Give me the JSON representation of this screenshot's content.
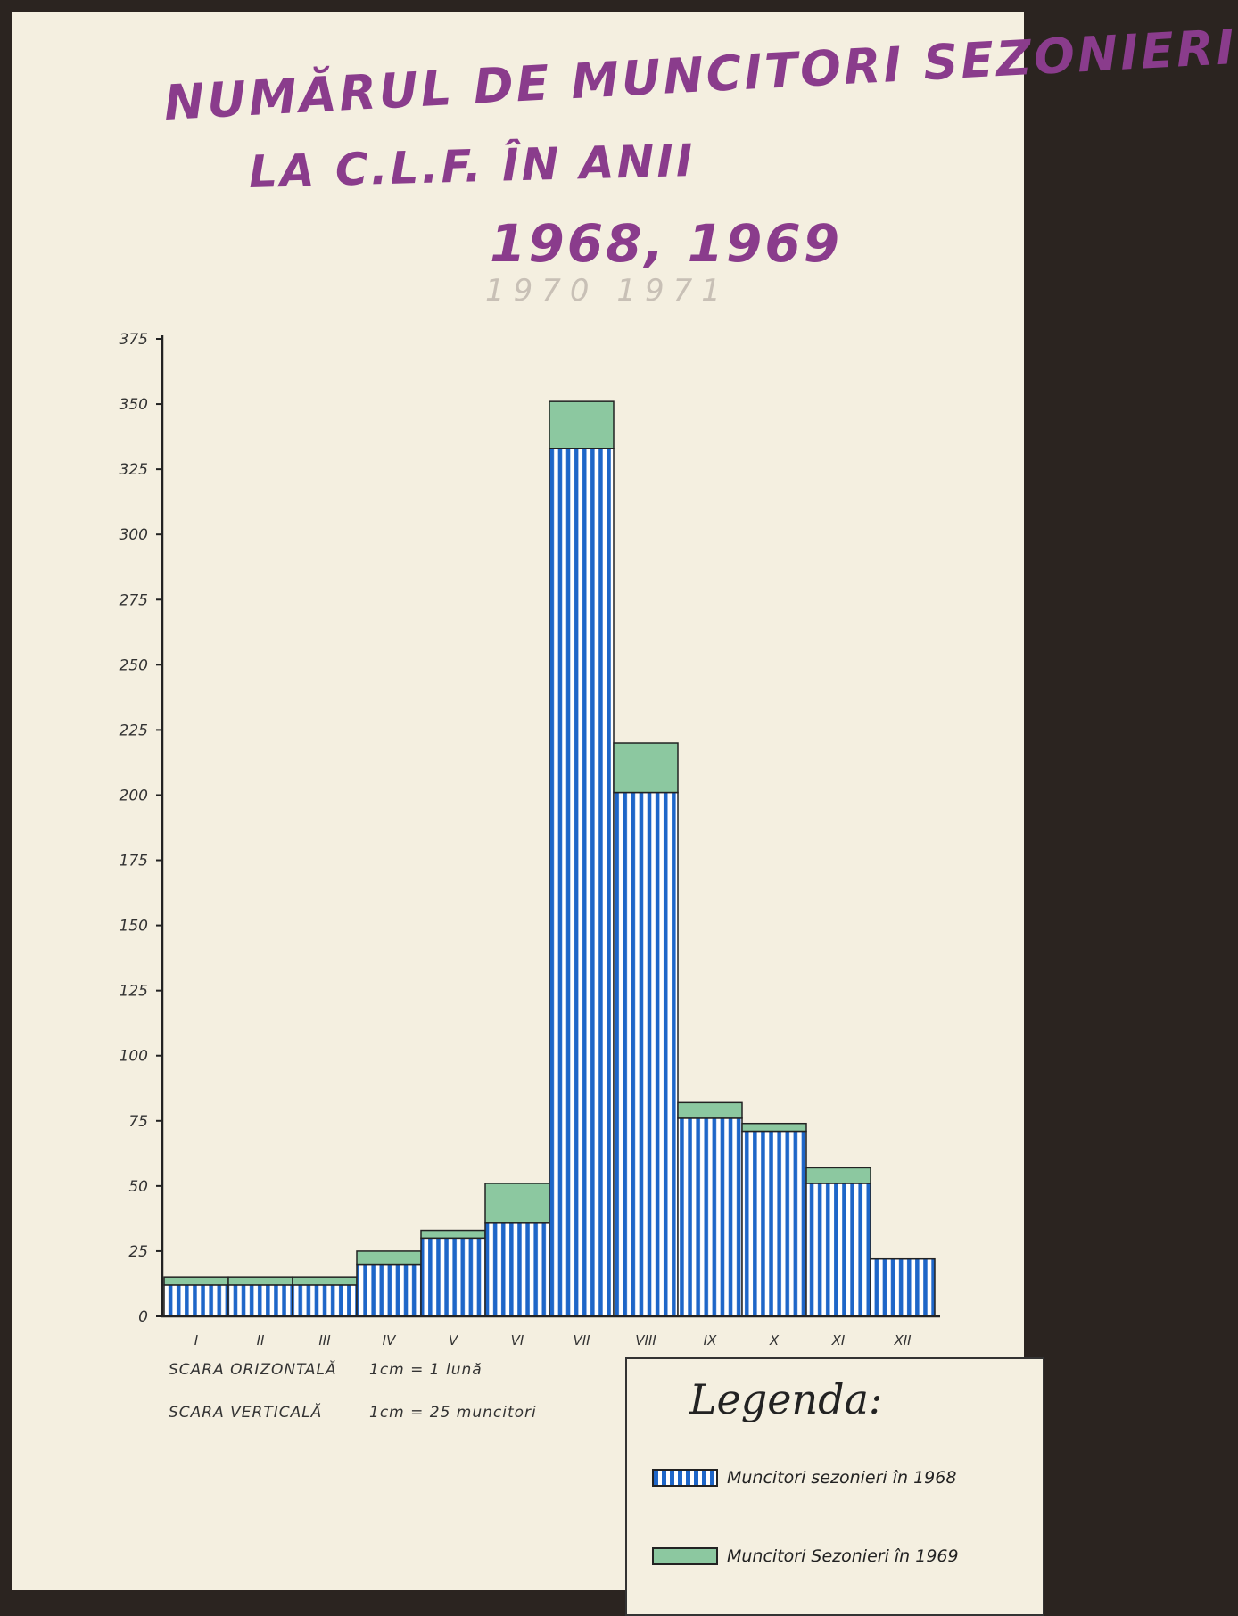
{
  "title": {
    "line1": "NUMĂRUL DE MUNCITORI SEZONIERI",
    "line2": "LA C.L.F. ÎN ANII",
    "line3": "1968, 1969",
    "pencil_note": "1970  1971"
  },
  "scale": {
    "horizontal_label": "SCARA ORIZONTALĂ",
    "horizontal_value": "1cm = 1 lună",
    "vertical_label": "SCARA VERTICALĂ",
    "vertical_value": "1cm = 25 muncitori"
  },
  "legend": {
    "title": "Legenda:",
    "items": [
      {
        "label": "Muncitori sezonieri în 1968"
      },
      {
        "label": "Muncitori Sezonieri în 1969"
      }
    ]
  },
  "colors": {
    "blue": "#1e66c8",
    "green": "#8cc8a0",
    "title": "#8a3c8c"
  },
  "chart_data": {
    "type": "bar",
    "stacked": true,
    "categories": [
      "I",
      "II",
      "III",
      "IV",
      "V",
      "VI",
      "VII",
      "VIII",
      "IX",
      "X",
      "XI",
      "XII"
    ],
    "series": [
      {
        "name": "Muncitori sezonieri în 1968",
        "values": [
          12,
          12,
          12,
          20,
          30,
          36,
          333,
          201,
          76,
          71,
          51,
          22
        ]
      },
      {
        "name": "Muncitori Sezonieri în 1969",
        "values": [
          3,
          3,
          3,
          5,
          3,
          15,
          18,
          19,
          6,
          3,
          6,
          0
        ]
      }
    ],
    "yticks": [
      0,
      25,
      50,
      75,
      100,
      125,
      150,
      175,
      200,
      225,
      250,
      275,
      300,
      325,
      350,
      375
    ],
    "ylim": [
      0,
      375
    ],
    "title": "NUMĂRUL DE MUNCITORI SEZONIERI LA C.L.F. ÎN ANII 1968, 1969",
    "xlabel": "",
    "ylabel": ""
  }
}
